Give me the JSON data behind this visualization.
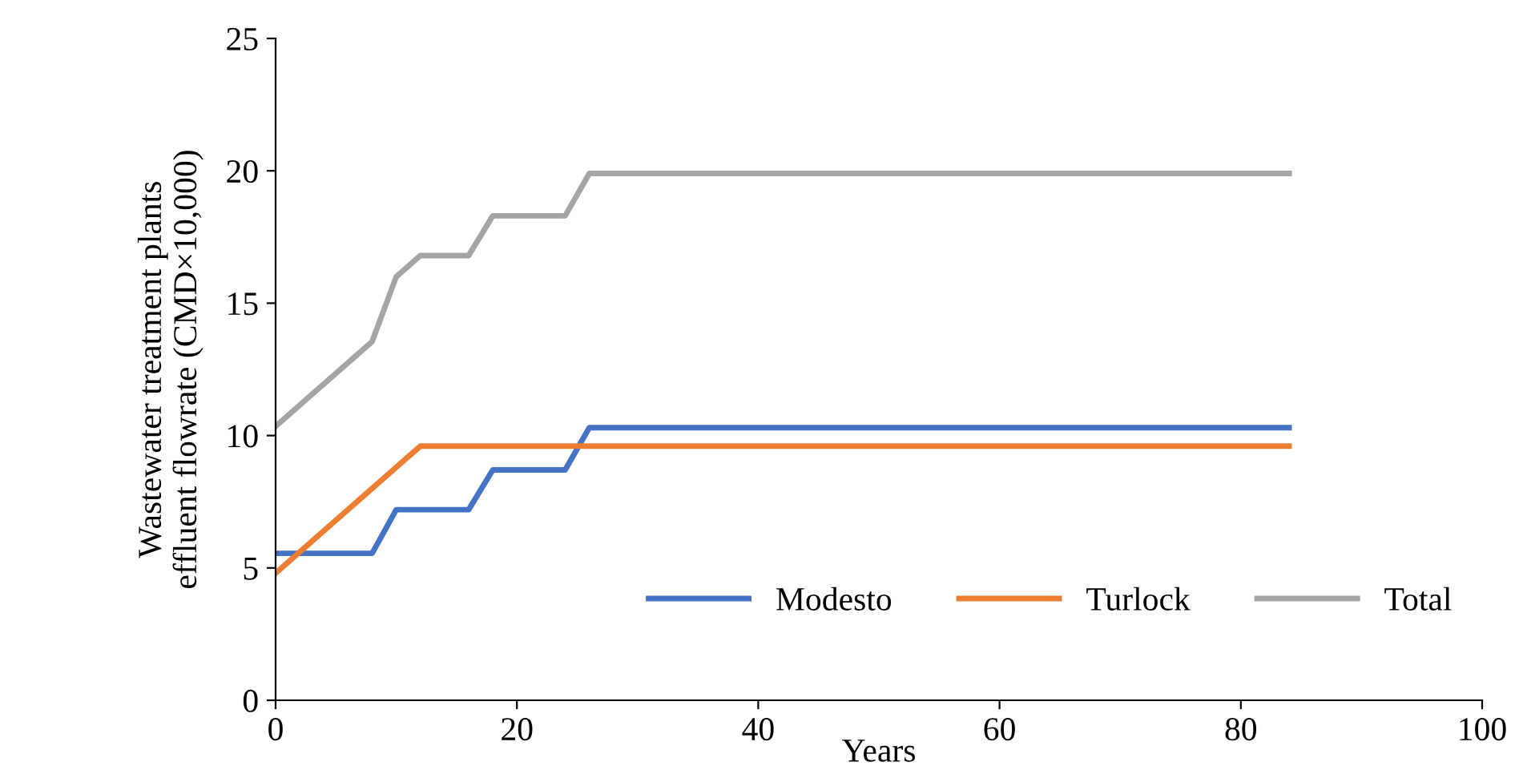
{
  "chart_data": {
    "type": "line",
    "xlabel": "Years",
    "ylabel": "Wastewater treatment plants\neffluent flowrate (CMD×10,000)",
    "xlim": [
      0,
      100
    ],
    "xticks": [
      0,
      20,
      40,
      60,
      80,
      100
    ],
    "ylim": [
      0,
      25
    ],
    "yticks": [
      0,
      5,
      10,
      15,
      20,
      25
    ],
    "grid": false,
    "legend": "bottom right",
    "marker": "none",
    "line_style": "solid",
    "series": [
      {
        "name": "Modesto",
        "color": "#4472c4",
        "x": [
          0,
          8,
          10,
          16,
          18,
          24,
          26,
          84
        ],
        "values": [
          5.55,
          5.55,
          7.2,
          7.2,
          8.7,
          8.7,
          10.3,
          10.3
        ]
      },
      {
        "name": "Turlock",
        "color": "#ed7d31",
        "x": [
          0,
          12,
          84
        ],
        "values": [
          4.8,
          9.6,
          9.6
        ]
      },
      {
        "name": "Total",
        "color": "#a5a5a5",
        "x": [
          0,
          8,
          10,
          12,
          16,
          18,
          24,
          26,
          84
        ],
        "values": [
          10.35,
          13.55,
          16.0,
          16.8,
          16.8,
          18.3,
          18.3,
          19.9,
          19.9
        ]
      }
    ]
  }
}
